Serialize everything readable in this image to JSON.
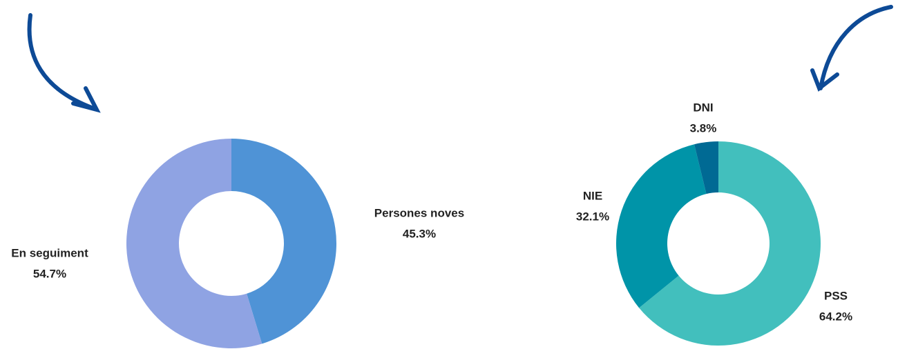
{
  "chart_data": [
    {
      "type": "donut",
      "categories": [
        "Persones noves",
        "En seguiment"
      ],
      "values": [
        45.3,
        54.7
      ],
      "value_labels": [
        "45.3%",
        "54.7%"
      ],
      "colors": [
        "#4f93d6",
        "#8fa3e3"
      ]
    },
    {
      "type": "donut",
      "categories": [
        "PSS",
        "NIE",
        "DNI"
      ],
      "values": [
        64.2,
        32.1,
        3.8
      ],
      "value_labels": [
        "64.2%",
        "32.1%",
        "3.8%"
      ],
      "colors": [
        "#42bfbd",
        "#0094a8",
        "#006a94"
      ]
    }
  ]
}
